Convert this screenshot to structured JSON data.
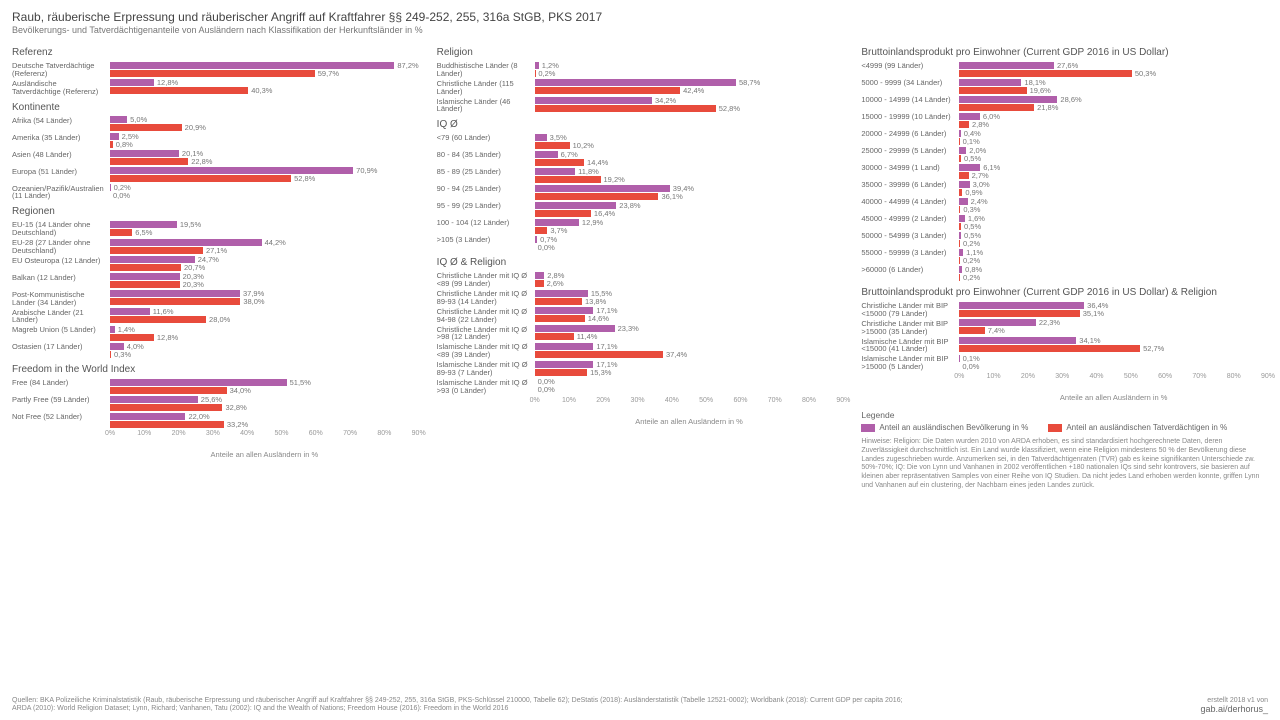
{
  "title": "Raub, räuberische Erpressung und räuberischer Angriff auf Kraftfahrer §§ 249-252, 255, 316a StGB, PKS 2017",
  "subtitle": "Bevölkerungs- und Tatverdächtigenanteile von Ausländern nach Klassifikation der Herkunftsländer in %",
  "colors": {
    "pop": "#b05faa",
    "sus": "#e84b3c",
    "bg": "#ffffff"
  },
  "axis": {
    "max": 90,
    "ticks": [
      0,
      10,
      20,
      30,
      40,
      50,
      60,
      70,
      80,
      90
    ],
    "label": "Anteile an allen Ausländern in %"
  },
  "legend": {
    "title": "Legende",
    "pop": "Anteil an ausländischen Bevölkerung in %",
    "sus": "Anteil an ausländischen Tatverdächtigen in %"
  },
  "columns": [
    {
      "sections": [
        {
          "title": "Referenz",
          "rows": [
            {
              "label": "Deutsche Tatverdächtige (Referenz)",
              "pop": 87.2,
              "sus": 59.7
            },
            {
              "label": "Ausländische Tatverdächtige (Referenz)",
              "pop": 12.8,
              "sus": 40.3
            }
          ]
        },
        {
          "title": "Kontinente",
          "rows": [
            {
              "label": "Afrika (54 Länder)",
              "pop": 5.0,
              "sus": 20.9
            },
            {
              "label": "Amerika (35 Länder)",
              "pop": 2.5,
              "sus": 0.8
            },
            {
              "label": "Asien (48 Länder)",
              "pop": 20.1,
              "sus": 22.8
            },
            {
              "label": "Europa (51 Länder)",
              "pop": 70.9,
              "sus": 52.8
            },
            {
              "label": "Ozeanien/Pazifik/Australien (11 Länder)",
              "pop": 0.2,
              "sus": 0.0
            }
          ]
        },
        {
          "title": "Regionen",
          "rows": [
            {
              "label": "EU-15 (14 Länder ohne Deutschland)",
              "pop": 19.5,
              "sus": 6.5
            },
            {
              "label": "EU-28 (27 Länder ohne Deutschland)",
              "pop": 44.2,
              "sus": 27.1
            },
            {
              "label": "EU Osteuropa (12 Länder)",
              "pop": 24.7,
              "sus": 20.7
            },
            {
              "label": "Balkan (12 Länder)",
              "pop": 20.3,
              "sus": 20.3
            },
            {
              "label": "Post-Kommunistische Länder (34 Länder)",
              "pop": 37.9,
              "sus": 38.0
            },
            {
              "label": "Arabische Länder (21 Länder)",
              "pop": 11.6,
              "sus": 28.0
            },
            {
              "label": "Magreb Union (5 Länder)",
              "pop": 1.4,
              "sus": 12.8
            },
            {
              "label": "Ostasien (17 Länder)",
              "pop": 4.0,
              "sus": 0.3
            }
          ]
        },
        {
          "title": "Freedom in the World Index",
          "rows": [
            {
              "label": "Free (84 Länder)",
              "pop": 51.5,
              "sus": 34.0
            },
            {
              "label": "Partly Free (59 Länder)",
              "pop": 25.6,
              "sus": 32.8
            },
            {
              "label": "Not Free (52 Länder)",
              "pop": 22.0,
              "sus": 33.2
            }
          ],
          "showAxis": true
        }
      ]
    },
    {
      "sections": [
        {
          "title": "Religion",
          "rows": [
            {
              "label": "Buddhistische Länder (8 Länder)",
              "pop": 1.2,
              "sus": 0.2
            },
            {
              "label": "Christliche Länder (115 Länder)",
              "pop": 58.7,
              "sus": 42.4
            },
            {
              "label": "Islamische Länder (46 Länder)",
              "pop": 34.2,
              "sus": 52.8
            }
          ]
        },
        {
          "title": "IQ Ø",
          "rows": [
            {
              "label": "<79 (60 Länder)",
              "pop": 3.5,
              "sus": 10.2
            },
            {
              "label": "80 - 84 (35 Länder)",
              "pop": 6.7,
              "sus": 14.4
            },
            {
              "label": "85 - 89 (25 Länder)",
              "pop": 11.8,
              "sus": 19.2
            },
            {
              "label": "90 - 94 (25 Länder)",
              "pop": 39.4,
              "sus": 36.1
            },
            {
              "label": "95 - 99 (29 Länder)",
              "pop": 23.8,
              "sus": 16.4
            },
            {
              "label": "100 - 104 (12 Länder)",
              "pop": 12.9,
              "sus": 3.7
            },
            {
              "label": ">105 (3 Länder)",
              "pop": 0.7,
              "sus": 0.0
            }
          ]
        },
        {
          "title": "IQ Ø & Religion",
          "rows": [
            {
              "label": "Christliche Länder mit IQ Ø <89 (99 Länder)",
              "pop": 2.8,
              "sus": 2.6
            },
            {
              "label": "Christliche Länder mit IQ Ø 89-93 (14 Länder)",
              "pop": 15.5,
              "sus": 13.8
            },
            {
              "label": "Christliche Länder mit IQ Ø 94-98 (22 Länder)",
              "pop": 17.1,
              "sus": 14.6
            },
            {
              "label": "Christliche Länder mit IQ Ø >98 (12 Länder)",
              "pop": 23.3,
              "sus": 11.4
            },
            {
              "label": "Islamische Länder mit IQ Ø <89 (39 Länder)",
              "pop": 17.1,
              "sus": 37.4
            },
            {
              "label": "Islamische Länder mit IQ Ø 89-93 (7 Länder)",
              "pop": 17.1,
              "sus": 15.3
            },
            {
              "label": "Islamische Länder mit IQ Ø >93 (0 Länder)",
              "pop": 0.0,
              "sus": 0.0
            }
          ],
          "showAxis": true
        }
      ]
    },
    {
      "sections": [
        {
          "title": "Bruttoinlandsprodukt pro Einwohner (Current GDP 2016 in US Dollar)",
          "rows": [
            {
              "label": "<4999 (99 Länder)",
              "pop": 27.6,
              "sus": 50.3
            },
            {
              "label": "5000 - 9999 (34 Länder)",
              "pop": 18.1,
              "sus": 19.6
            },
            {
              "label": "10000 - 14999 (14 Länder)",
              "pop": 28.6,
              "sus": 21.8
            },
            {
              "label": "15000 - 19999 (10 Länder)",
              "pop": 6.0,
              "sus": 2.8
            },
            {
              "label": "20000 - 24999 (6 Länder)",
              "pop": 0.4,
              "sus": 0.1
            },
            {
              "label": "25000 - 29999 (5 Länder)",
              "pop": 2.0,
              "sus": 0.5
            },
            {
              "label": "30000 - 34999 (1 Land)",
              "pop": 6.1,
              "sus": 2.7
            },
            {
              "label": "35000 - 39999 (6 Länder)",
              "pop": 3.0,
              "sus": 0.9
            },
            {
              "label": "40000 - 44999 (4 Länder)",
              "pop": 2.4,
              "sus": 0.3
            },
            {
              "label": "45000 - 49999 (2 Länder)",
              "pop": 1.6,
              "sus": 0.5
            },
            {
              "label": "50000 - 54999 (3 Länder)",
              "pop": 0.5,
              "sus": 0.2
            },
            {
              "label": "55000 - 59999 (3 Länder)",
              "pop": 1.1,
              "sus": 0.2
            },
            {
              "label": ">60000 (6 Länder)",
              "pop": 0.8,
              "sus": 0.2
            }
          ]
        },
        {
          "title": "Bruttoinlandsprodukt pro Einwohner (Current GDP 2016 in US Dollar) & Religion",
          "rows": [
            {
              "label": "Christliche Länder mit BIP <15000 (79 Länder)",
              "pop": 36.4,
              "sus": 35.1
            },
            {
              "label": "Christliche Länder mit BIP >15000 (35 Länder)",
              "pop": 22.3,
              "sus": 7.4
            },
            {
              "label": "Islamische Länder mit BIP <15000 (41 Länder)",
              "pop": 34.1,
              "sus": 52.7
            },
            {
              "label": "Islamische Länder mit BIP >15000 (5 Länder)",
              "pop": 0.1,
              "sus": 0.0
            }
          ],
          "showAxis": true
        }
      ],
      "showLegend": true
    }
  ],
  "hinweis": "Hinweise: Religion: Die Daten wurden 2010 von ARDA erhoben, es sind standardisiert hochgerechnete Daten, deren Zuverlässigkeit durchschnittlich ist. Ein Land wurde klassifiziert, wenn eine Religion mindestens 50 % der Bevölkerung diese Landes zugeschrieben wurde. Anzumerken sei, in den Tatverdächtigenraten (TVR) gab es keine signifikanten Unterschiede zw. 50%-70%; IQ: Die von Lynn und Vanhanen in 2002 veröffentlichen +180 nationalen IQs sind sehr kontrovers, sie basieren auf kleinen aber repräsentativen Samples von einer Reihe von IQ Studien. Da nicht jedes Land erhoben werden konnte, griffen Lynn und Vanhanen auf ein clustering, der Nachbarn eines jeden Landes zurück.",
  "quellen": "Quellen: BKA Polizeiliche Kriminalstatistik (Raub, räuberische Erpressung und räuberischer Angriff auf Kraftfahrer §§ 249-252, 255, 316a StGB, PKS-Schlüssel 210000, Tabelle 62); DeStatis (2018): Ausländerstatistik (Tabelle 12521-0002); Worldbank (2018): Current GDP per capita 2016; ARDA (2010): World Religion Dataset; Lynn, Richard; Vanhanen, Tatu (2002): IQ and the Wealth of Nations; Freedom House (2016): Freedom in the World 2016",
  "credit1": "erstellt 2018 v1 von",
  "credit2": "gab.ai/derhorus_"
}
